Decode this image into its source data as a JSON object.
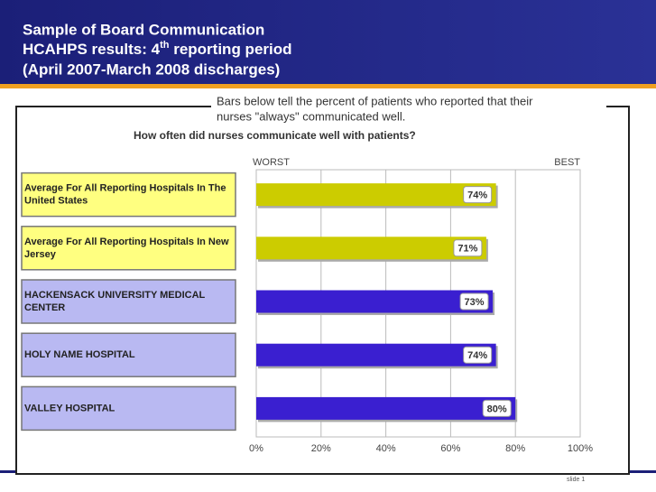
{
  "header": {
    "title_line1": "Sample of Board Communication",
    "title_line2_a": "HCAHPS results: 4",
    "title_line2_sup": "th",
    "title_line2_b": " reporting period",
    "title_line3": "(April 2007-March 2008 discharges)"
  },
  "caption": [
    "Bars below tell the percent of patients who reported that their",
    "nurses \"always\" communicated well."
  ],
  "chart_data": {
    "type": "bar",
    "orientation": "horizontal",
    "title": "How often did nurses communicate well with patients?",
    "axis_left_label": "WORST",
    "axis_right_label": "BEST",
    "categories": [
      "Average For All Reporting Hospitals In The United States",
      "Average For All Reporting Hospitals In New Jersey",
      "HACKENSACK UNIVERSITY MEDICAL CENTER",
      "HOLY NAME HOSPITAL",
      "VALLEY HOSPITAL"
    ],
    "category_colors": [
      "#ffff80",
      "#ffff80",
      "#b9b9f2",
      "#b9b9f2",
      "#b9b9f2"
    ],
    "values": [
      74,
      71,
      73,
      74,
      80
    ],
    "value_labels": [
      "74%",
      "71%",
      "73%",
      "74%",
      "80%"
    ],
    "colors": [
      "#cccc00",
      "#cccc00",
      "#3a1fd0",
      "#3a1fd0",
      "#3a1fd0"
    ],
    "xlim": [
      0,
      100
    ],
    "xticks": [
      {
        "value": 0,
        "label": "0%"
      },
      {
        "value": 20,
        "label": "20%"
      },
      {
        "value": 40,
        "label": "40%"
      },
      {
        "value": 60,
        "label": "60%"
      },
      {
        "value": 80,
        "label": "80%"
      },
      {
        "value": 100,
        "label": "100%"
      }
    ],
    "grid": true
  },
  "footer": "slide 1"
}
